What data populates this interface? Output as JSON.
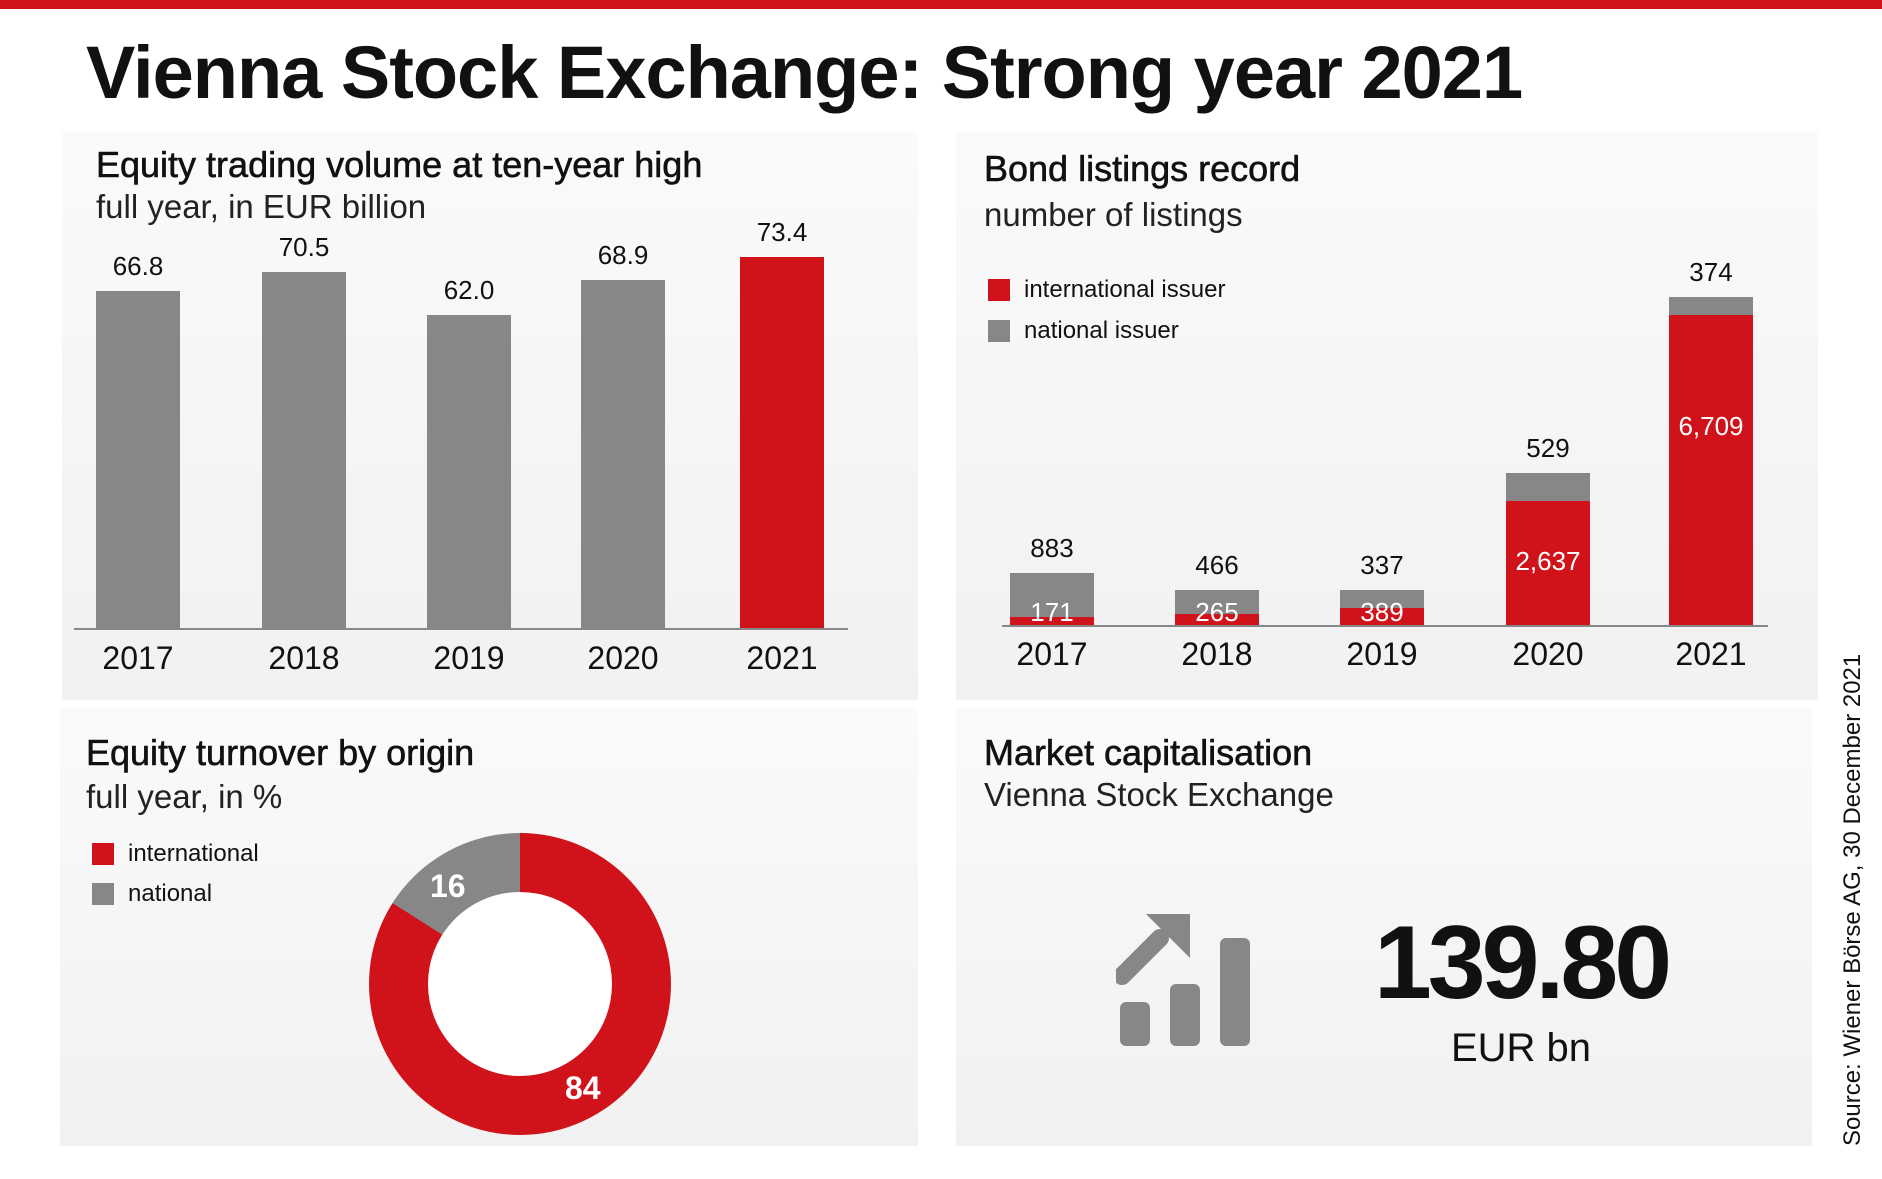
{
  "title": "Vienna Stock Exchange: Strong year 2021",
  "colors": {
    "accent": "#d0131a",
    "gray": "#878787"
  },
  "source": "Source: Wiener Börse AG, 30 December 2021",
  "chart_data": [
    {
      "type": "bar",
      "title": "Equity trading volume at ten-year high",
      "subtitle": "full year, in EUR billion",
      "categories": [
        "2017",
        "2018",
        "2019",
        "2020",
        "2021"
      ],
      "values": [
        66.8,
        70.5,
        62.0,
        68.9,
        73.4
      ],
      "labels": [
        "66.8",
        "70.5",
        "62.0",
        "68.9",
        "73.4"
      ],
      "highlight": "2021"
    },
    {
      "type": "bar",
      "stacked": true,
      "title": "Bond listings record",
      "subtitle": "number of listings",
      "categories": [
        "2017",
        "2018",
        "2019",
        "2020",
        "2021"
      ],
      "legend": [
        "international issuer",
        "national issuer"
      ],
      "series": [
        {
          "name": "international issuer",
          "values": [
            171,
            265,
            389,
            2637,
            6709
          ],
          "labels": [
            "171",
            "265",
            "389",
            "2,637",
            "6,709"
          ]
        },
        {
          "name": "national issuer",
          "values": [
            883,
            466,
            337,
            529,
            374
          ],
          "labels": [
            "883",
            "466",
            "337",
            "529",
            "374"
          ]
        }
      ]
    },
    {
      "type": "pie",
      "donut": true,
      "title": "Equity turnover by origin",
      "subtitle": "full year, in %",
      "legend": [
        "international",
        "national"
      ],
      "values": [
        84,
        16
      ],
      "labels": [
        "84",
        "16"
      ]
    }
  ],
  "market_cap": {
    "title": "Market capitalisation",
    "subtitle": "Vienna Stock Exchange",
    "value": "139.80",
    "unit": "EUR bn",
    "icon": "chart-growth-icon"
  }
}
